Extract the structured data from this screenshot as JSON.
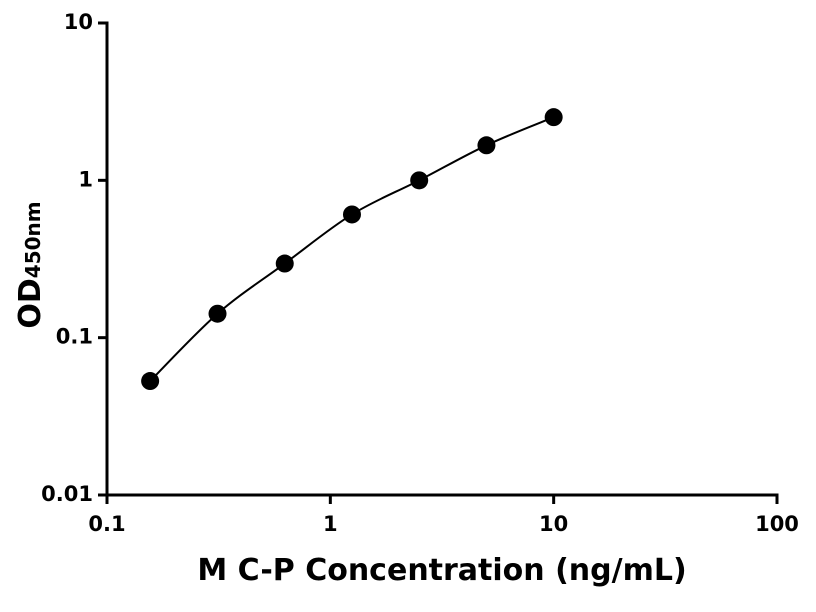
{
  "chart_data": {
    "type": "scatter",
    "x_label": "M C-P Concentration (ng/mL)",
    "y_label": "OD",
    "y_label_sub": "450nm",
    "xscale": "log",
    "yscale": "log",
    "xlim": [
      0.1,
      100
    ],
    "ylim": [
      0.01,
      10
    ],
    "xticks": [
      0.1,
      1,
      10,
      100
    ],
    "yticks": [
      0.01,
      0.1,
      1,
      10
    ],
    "fit_curve": true,
    "series": [
      {
        "name": "M C-P",
        "color": "#000000",
        "x": [
          0.156,
          0.3125,
          0.625,
          1.25,
          2.5,
          5,
          10
        ],
        "values": [
          0.053,
          0.142,
          0.296,
          0.607,
          1.0,
          1.67,
          2.52
        ]
      }
    ]
  }
}
